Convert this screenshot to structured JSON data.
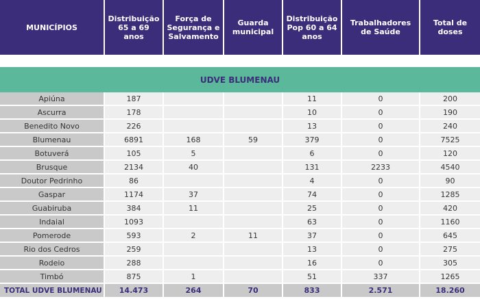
{
  "headers": [
    "MUNICÍPIOS",
    "Distribuição 65 a 69 anos",
    "Força de Segurança e Salvamento",
    "Guarda municipal",
    "Distribuição Pop 60 a 64 anos",
    "Trabalhadores de Saúde",
    "Total de doses"
  ],
  "region": "UDVE BLUMENAU",
  "rows": [
    [
      "Apiúna",
      "187",
      "",
      "",
      "11",
      "0",
      "200"
    ],
    [
      "Ascurra",
      "178",
      "",
      "",
      "10",
      "0",
      "190"
    ],
    [
      "Benedito Novo",
      "226",
      "",
      "",
      "13",
      "0",
      "240"
    ],
    [
      "Blumenau",
      "6891",
      "168",
      "59",
      "379",
      "0",
      "7525"
    ],
    [
      "Botuverá",
      "105",
      "5",
      "",
      "6",
      "0",
      "120"
    ],
    [
      "Brusque",
      "2134",
      "40",
      "",
      "131",
      "2233",
      "4540"
    ],
    [
      "Doutor Pedrinho",
      "86",
      "",
      "",
      "4",
      "0",
      "90"
    ],
    [
      "Gaspar",
      "1174",
      "37",
      "",
      "74",
      "0",
      "1285"
    ],
    [
      "Guabiruba",
      "384",
      "11",
      "",
      "25",
      "0",
      "420"
    ],
    [
      "Indaial",
      "1093",
      "",
      "",
      "63",
      "0",
      "1160"
    ],
    [
      "Pomerode",
      "593",
      "2",
      "11",
      "37",
      "0",
      "645"
    ],
    [
      "Rio dos Cedros",
      "259",
      "",
      "",
      "13",
      "0",
      "275"
    ],
    [
      "Rodeio",
      "288",
      "",
      "",
      "16",
      "0",
      "305"
    ],
    [
      "Timbó",
      "875",
      "1",
      "",
      "51",
      "337",
      "1265"
    ]
  ],
  "total": [
    "TOTAL UDVE BLUMENAU",
    "14.473",
    "264",
    "70",
    "833",
    "2.571",
    "18.260"
  ]
}
